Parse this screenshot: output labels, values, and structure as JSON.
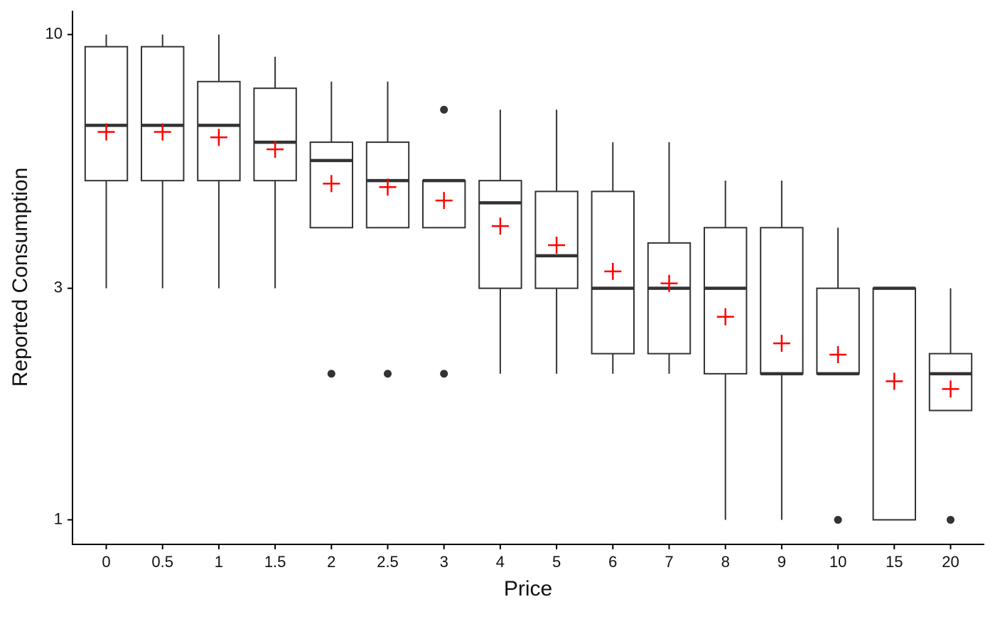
{
  "chart_data": {
    "type": "boxplot",
    "x_label": "Price",
    "y_label": "Reported Consumption",
    "categories": [
      "0",
      "0.5",
      "1",
      "1.5",
      "2",
      "2.5",
      "3",
      "4",
      "5",
      "6",
      "7",
      "8",
      "9",
      "10",
      "15",
      "20"
    ],
    "boxes": [
      {
        "whisker_low": 3,
        "q1": 5,
        "median": 6.5,
        "q3": 9.44,
        "whisker_high": 10,
        "mean": 6.3,
        "outliers": []
      },
      {
        "whisker_low": 3,
        "q1": 5,
        "median": 6.5,
        "q3": 9.44,
        "whisker_high": 10,
        "mean": 6.3,
        "outliers": []
      },
      {
        "whisker_low": 3,
        "q1": 5,
        "median": 6.5,
        "q3": 8,
        "whisker_high": 10,
        "mean": 6.14,
        "outliers": []
      },
      {
        "whisker_low": 3,
        "q1": 5,
        "median": 6,
        "q3": 7.75,
        "whisker_high": 9,
        "mean": 5.8,
        "outliers": []
      },
      {
        "whisker_low": 4,
        "q1": 4,
        "median": 5.5,
        "q3": 6,
        "whisker_high": 8,
        "mean": 4.93,
        "outliers": [
          2
        ]
      },
      {
        "whisker_low": 4,
        "q1": 4,
        "median": 5,
        "q3": 6,
        "whisker_high": 8,
        "mean": 4.85,
        "outliers": [
          2
        ]
      },
      {
        "whisker_low": 4,
        "q1": 4,
        "median": 5,
        "q3": 5,
        "whisker_high": 5,
        "mean": 4.55,
        "outliers": [
          2,
          7
        ]
      },
      {
        "whisker_low": 2,
        "q1": 3,
        "median": 4.5,
        "q3": 5,
        "whisker_high": 7,
        "mean": 4.03,
        "outliers": []
      },
      {
        "whisker_low": 2,
        "q1": 3,
        "median": 3.5,
        "q3": 4.75,
        "whisker_high": 7,
        "mean": 3.68,
        "outliers": []
      },
      {
        "whisker_low": 2,
        "q1": 2.2,
        "median": 3,
        "q3": 4.75,
        "whisker_high": 6,
        "mean": 3.25,
        "outliers": []
      },
      {
        "whisker_low": 2,
        "q1": 2.2,
        "median": 3,
        "q3": 3.72,
        "whisker_high": 6,
        "mean": 3.07,
        "outliers": []
      },
      {
        "whisker_low": 1,
        "q1": 2,
        "median": 3,
        "q3": 4,
        "whisker_high": 5,
        "mean": 2.62,
        "outliers": []
      },
      {
        "whisker_low": 1,
        "q1": 2,
        "median": 2,
        "q3": 4,
        "whisker_high": 5,
        "mean": 2.31,
        "outliers": []
      },
      {
        "whisker_low": 2,
        "q1": 2,
        "median": 2,
        "q3": 3,
        "whisker_high": 4,
        "mean": 2.19,
        "outliers": [
          1
        ]
      },
      {
        "whisker_low": 1,
        "q1": 1,
        "median": 3,
        "q3": 3,
        "whisker_high": 3,
        "mean": 1.93,
        "outliers": []
      },
      {
        "whisker_low": 1.68,
        "q1": 1.68,
        "median": 2,
        "q3": 2.2,
        "whisker_high": 3,
        "mean": 1.86,
        "outliers": [
          1
        ]
      }
    ],
    "box_color": "#333333",
    "mean_color": "#ff0000",
    "y_scale": "log",
    "ylim": [
      0.89,
      11.2
    ],
    "yticks": [
      1,
      3,
      10
    ],
    "grid": false
  }
}
